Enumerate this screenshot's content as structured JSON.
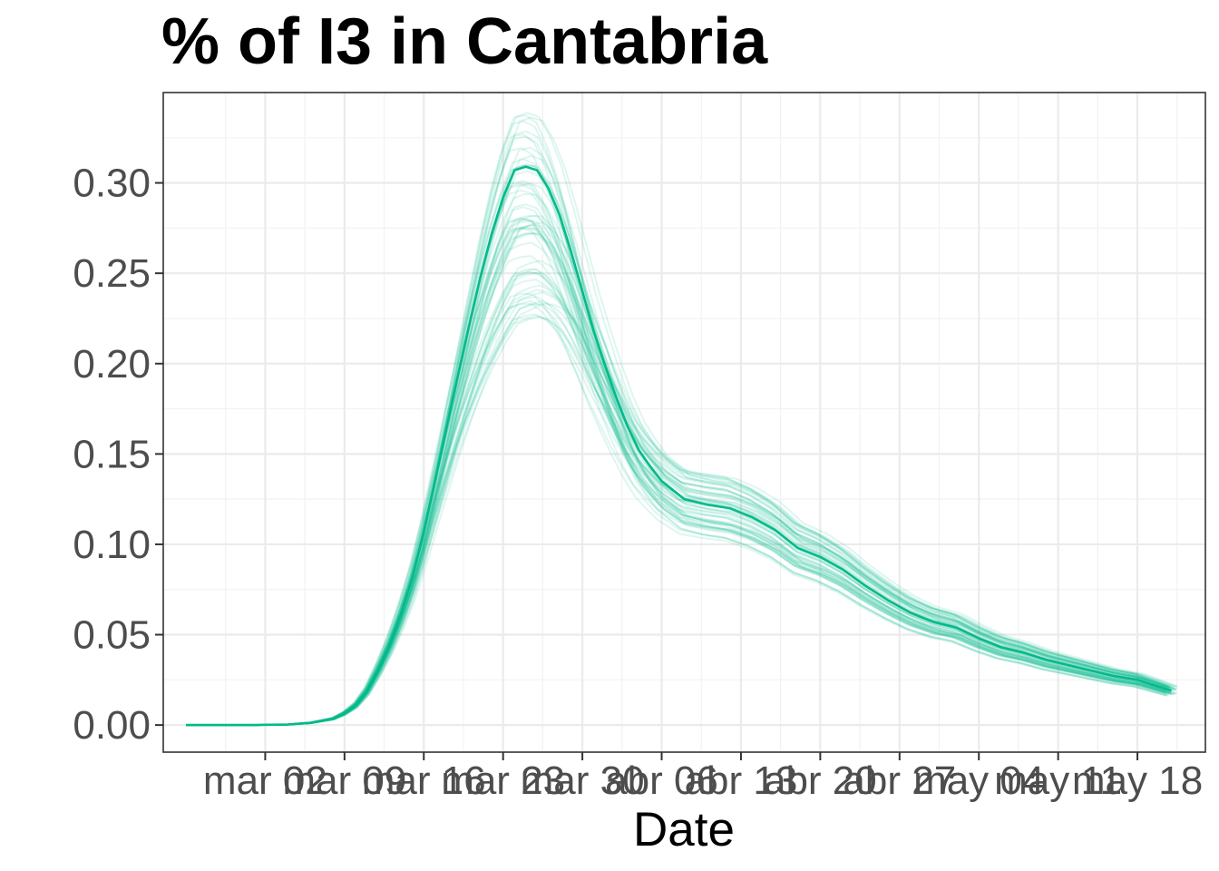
{
  "chart_data": {
    "type": "line",
    "title": "% of I3 in  Cantabria",
    "xlabel": "Date",
    "ylabel": "",
    "x_tick_labels": [
      "mar 02",
      "mar 09",
      "mar 16",
      "mar 23",
      "mar 30",
      "abr 06",
      "abr 13",
      "abr 20",
      "abr 27",
      "may 04",
      "may 11",
      "may 18"
    ],
    "y_tick_labels": [
      "0.00",
      "0.05",
      "0.10",
      "0.15",
      "0.20",
      "0.25",
      "0.30"
    ],
    "ylim": [
      -0.015,
      0.35
    ],
    "xlim": [
      "2020-02-22",
      "2020-05-24"
    ],
    "grid": true,
    "line_color": "#00BA8A",
    "ensemble_runs": 60,
    "series": [
      {
        "x": [
          "2020-02-24",
          "2020-02-27",
          "2020-03-01",
          "2020-03-04",
          "2020-03-06",
          "2020-03-08",
          "2020-03-09",
          "2020-03-10",
          "2020-03-11",
          "2020-03-12",
          "2020-03-13",
          "2020-03-14",
          "2020-03-15",
          "2020-03-16",
          "2020-03-17",
          "2020-03-18",
          "2020-03-19",
          "2020-03-20",
          "2020-03-21",
          "2020-03-22",
          "2020-03-23",
          "2020-03-24",
          "2020-03-25",
          "2020-03-26",
          "2020-03-27",
          "2020-03-28",
          "2020-03-29",
          "2020-03-30",
          "2020-03-31",
          "2020-04-01",
          "2020-04-02",
          "2020-04-03",
          "2020-04-04",
          "2020-04-05",
          "2020-04-06",
          "2020-04-08",
          "2020-04-10",
          "2020-04-12",
          "2020-04-14",
          "2020-04-16",
          "2020-04-18",
          "2020-04-20",
          "2020-04-22",
          "2020-04-24",
          "2020-04-26",
          "2020-04-28",
          "2020-04-30",
          "2020-05-02",
          "2020-05-04",
          "2020-05-06",
          "2020-05-08",
          "2020-05-10",
          "2020-05-12",
          "2020-05-14",
          "2020-05-16",
          "2020-05-18",
          "2020-05-20",
          "2020-05-21"
        ],
        "y": [
          0.0,
          0.0,
          0.0,
          0.0003,
          0.0012,
          0.0035,
          0.0065,
          0.011,
          0.019,
          0.031,
          0.045,
          0.062,
          0.082,
          0.107,
          0.135,
          0.164,
          0.193,
          0.221,
          0.248,
          0.272,
          0.292,
          0.307,
          0.309,
          0.307,
          0.297,
          0.282,
          0.262,
          0.24,
          0.218,
          0.199,
          0.181,
          0.165,
          0.152,
          0.143,
          0.135,
          0.125,
          0.122,
          0.12,
          0.115,
          0.108,
          0.098,
          0.093,
          0.086,
          0.077,
          0.069,
          0.062,
          0.057,
          0.054,
          0.048,
          0.043,
          0.04,
          0.036,
          0.033,
          0.03,
          0.027,
          0.025,
          0.021,
          0.019
        ]
      }
    ]
  }
}
